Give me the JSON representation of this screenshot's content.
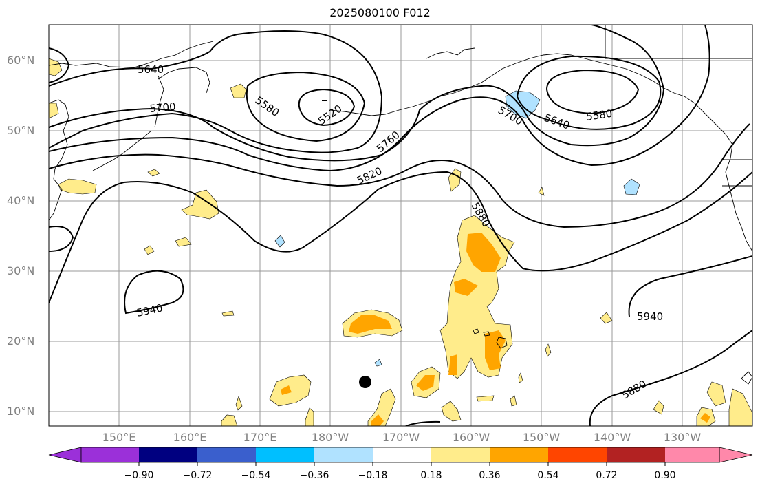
{
  "title": "2025080100 F012",
  "latitude_labels": [
    "60°N",
    "50°N",
    "40°N",
    "30°N",
    "20°N",
    "10°N"
  ],
  "longitude_labels": [
    "150°E",
    "160°E",
    "170°E",
    "180°W",
    "170°W",
    "160°W",
    "150°W",
    "140°W",
    "130°W"
  ],
  "colorbar": {
    "ticks": [
      "−0.90",
      "−0.72",
      "−0.54",
      "−0.36",
      "−0.18",
      "0.18",
      "0.36",
      "0.54",
      "0.72",
      "0.90"
    ],
    "colors": [
      "#9b30d9",
      "#000080",
      "#3a5fcd",
      "#00bfff",
      "#b0e2ff",
      "#ffffff",
      "#ffec8b",
      "#ffa500",
      "#ff4500",
      "#b22222",
      "#ff88aa"
    ]
  },
  "contour_labels": [
    "5640",
    "5700",
    "5580",
    "5520",
    "5760",
    "5820",
    "5880",
    "5700",
    "5640",
    "5580",
    "5940",
    "5940",
    "5880"
  ],
  "colors": {
    "contour": "#000000",
    "grid": "#999999",
    "positive_light": "#ffec8b",
    "positive_mid": "#ffa500",
    "negative_light": "#b0e2ff"
  }
}
